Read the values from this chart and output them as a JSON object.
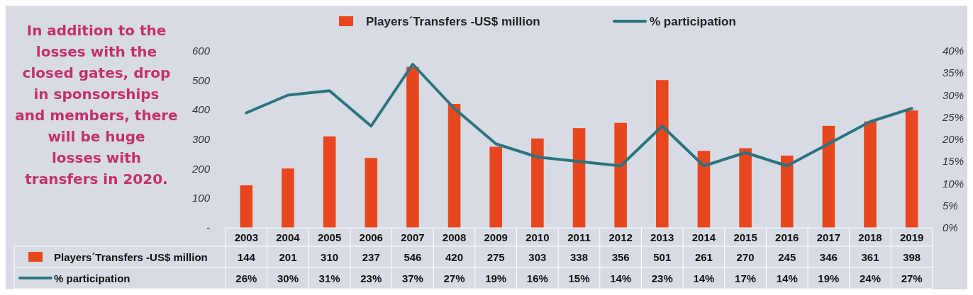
{
  "chart_data": {
    "type": "bar",
    "categories": [
      "2003",
      "2004",
      "2005",
      "2006",
      "2007",
      "2008",
      "2009",
      "2010",
      "2011",
      "2012",
      "2013",
      "2014",
      "2015",
      "2016",
      "2017",
      "2018",
      "2019"
    ],
    "series": [
      {
        "name": "Players´Transfers -US$ million",
        "color": "#e8461e",
        "values": [
          144,
          201,
          310,
          237,
          546,
          420,
          275,
          303,
          338,
          356,
          501,
          261,
          270,
          245,
          346,
          361,
          398
        ],
        "value_labels": [
          "144",
          "201",
          "310",
          "237",
          "546",
          "420",
          "275",
          "303",
          "338",
          "356",
          "501",
          "261",
          "270",
          "245",
          "346",
          "361",
          "398"
        ]
      },
      {
        "name": "% participation",
        "type": "line",
        "axis": "y2",
        "color": "#2b7480",
        "values": [
          26,
          30,
          31,
          23,
          37,
          27,
          19,
          16,
          15,
          14,
          23,
          14,
          17,
          14,
          19,
          24,
          27
        ],
        "value_labels": [
          "26%",
          "30%",
          "31%",
          "23%",
          "37%",
          "27%",
          "19%",
          "16%",
          "15%",
          "14%",
          "23%",
          "14%",
          "17%",
          "14%",
          "19%",
          "24%",
          "27%"
        ]
      }
    ],
    "ylim": [
      0,
      600
    ],
    "yticks": [
      {
        "value": 0,
        "label": "-"
      },
      100,
      200,
      300,
      400,
      500,
      600
    ],
    "y2lim": [
      0,
      40
    ],
    "y2ticks": [
      {
        "value": 0,
        "label": "0%"
      },
      {
        "value": 5,
        "label": "5%"
      },
      {
        "value": 10,
        "label": "10%"
      },
      {
        "value": 15,
        "label": "15%"
      },
      {
        "value": 20,
        "label": "20%"
      },
      {
        "value": 25,
        "label": "25%"
      },
      {
        "value": 30,
        "label": "30%"
      },
      {
        "value": 35,
        "label": "35%"
      },
      {
        "value": 40,
        "label": "40%"
      }
    ],
    "legend": "top",
    "line_style": "solid",
    "annotations": [
      "In addition to the losses with the closed gates, drop in sponsorships and members, there will be huge losses with transfers in 2020."
    ]
  }
}
